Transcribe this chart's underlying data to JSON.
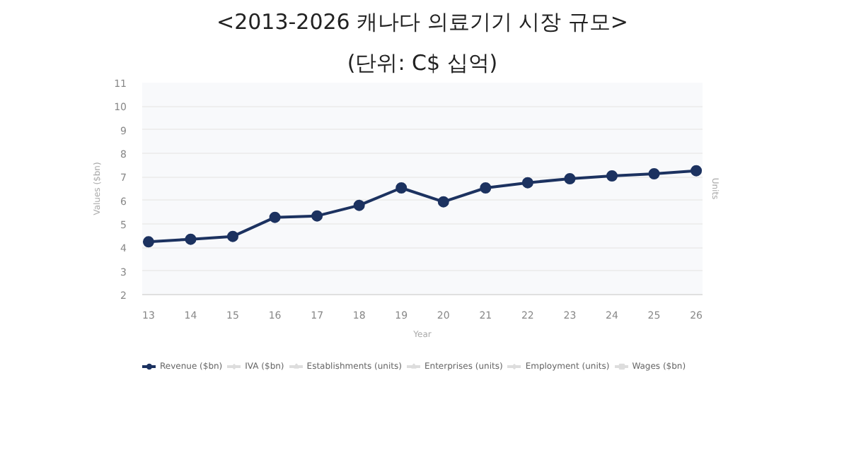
{
  "chart_data": {
    "type": "line",
    "title": "<2013-2026 캐나다 의료기기 시장 규모>",
    "subtitle": "(단위: C$ 십억)",
    "xlabel": "Year",
    "ylabel": "Values ($bn)",
    "y2label": "Units",
    "categories": [
      "13",
      "14",
      "15",
      "16",
      "17",
      "18",
      "19",
      "20",
      "21",
      "22",
      "23",
      "24",
      "25",
      "26"
    ],
    "series": [
      {
        "name": "Revenue ($bn)",
        "color": "#1c3260",
        "marker": "circle",
        "values": [
          4.24,
          4.35,
          4.47,
          5.28,
          5.34,
          5.79,
          6.53,
          5.94,
          6.53,
          6.75,
          6.92,
          7.04,
          7.13,
          7.26
        ]
      },
      {
        "name": "IVA ($bn)",
        "color": "#dddddd",
        "marker": "diamond",
        "values": [
          null,
          null,
          null,
          null,
          null,
          null,
          null,
          null,
          null,
          null,
          null,
          null,
          null,
          null
        ]
      },
      {
        "name": "Establishments (units)",
        "color": "#dddddd",
        "marker": "triangle",
        "values": [
          null,
          null,
          null,
          null,
          null,
          null,
          null,
          null,
          null,
          null,
          null,
          null,
          null,
          null
        ]
      },
      {
        "name": "Enterprises (units)",
        "color": "#dddddd",
        "marker": "triangle",
        "values": [
          null,
          null,
          null,
          null,
          null,
          null,
          null,
          null,
          null,
          null,
          null,
          null,
          null,
          null
        ]
      },
      {
        "name": "Employment (units)",
        "color": "#dddddd",
        "marker": "diamond",
        "values": [
          null,
          null,
          null,
          null,
          null,
          null,
          null,
          null,
          null,
          null,
          null,
          null,
          null,
          null
        ]
      },
      {
        "name": "Wages ($bn)",
        "color": "#dddddd",
        "marker": "square",
        "values": [
          null,
          null,
          null,
          null,
          null,
          null,
          null,
          null,
          null,
          null,
          null,
          null,
          null,
          null
        ]
      }
    ],
    "ylim": [
      2,
      11
    ],
    "yticks": [
      2,
      3,
      4,
      5,
      6,
      7,
      8,
      9,
      10,
      11
    ],
    "grid": "y",
    "legend": "bottom",
    "line_style": "solid"
  }
}
